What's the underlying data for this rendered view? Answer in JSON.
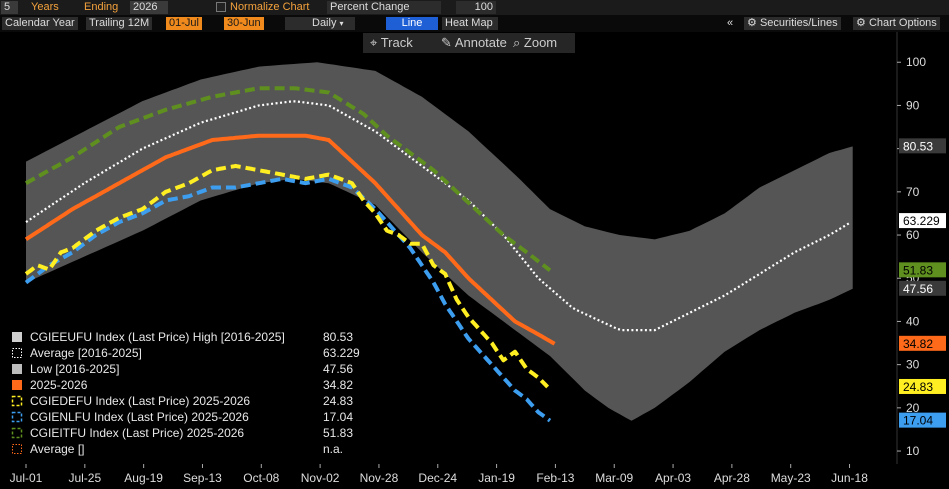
{
  "toolbar": {
    "years_value": "5",
    "years_label": "Years",
    "ending_label": "Ending",
    "ending_value": "2026",
    "normalize_label": "Normalize Chart",
    "normalize_mode": "Percent Change",
    "normalize_base": "100",
    "calendar_year": "Calendar Year",
    "trailing": "Trailing 12M",
    "start_date": "01-Jul",
    "end_date": "30-Jun",
    "frequency": "Daily",
    "line_label": "Line",
    "heatmap_label": "Heat Map",
    "collapse_glyph": "«",
    "securities_lines": "Securities/Lines",
    "chart_options": "Chart Options"
  },
  "modes": {
    "track": "Track",
    "annotate": "Annotate",
    "zoom": "Zoom"
  },
  "colors": {
    "background": "#000000",
    "band": "#5e5e5e",
    "average": "#ffffff",
    "current": "#ff6a1a",
    "cgiedefu": "#ffee22",
    "cgienlfu": "#3d9ef0",
    "cgieitfu": "#5f8f1f"
  },
  "chart_data": {
    "type": "line",
    "x_ticks": [
      "Jul-01",
      "Jul-25",
      "Aug-19",
      "Sep-13",
      "Oct-08",
      "Nov-02",
      "Nov-28",
      "Dec-24",
      "Jan-19",
      "Feb-13",
      "Mar-09",
      "Apr-03",
      "Apr-28",
      "May-23",
      "Jun-18"
    ],
    "ylim": [
      7,
      107
    ],
    "y_ticks": [
      10,
      20,
      30,
      40,
      50,
      60,
      70,
      80,
      90,
      100
    ],
    "grid": false,
    "legend_position": "bottom-left",
    "legend": [
      {
        "label": "CGIEEUFU Index (Last Price) High [2016-2025]",
        "value": "80.53",
        "style": "band-high"
      },
      {
        "label": "Average  [2016-2025]",
        "value": "63.229",
        "style": "average"
      },
      {
        "label": "Low  [2016-2025]",
        "value": "47.56",
        "style": "band-low"
      },
      {
        "label": "2025-2026",
        "value": "34.82",
        "style": "current"
      },
      {
        "label": "CGIEDEFU Index (Last Price) 2025-2026",
        "value": "24.83",
        "style": "cgiedefu"
      },
      {
        "label": "CGIENLFU Index (Last Price) 2025-2026",
        "value": "17.04",
        "style": "cgienlfu"
      },
      {
        "label": "CGIEITFU Index (Last Price) 2025-2026",
        "value": "51.83",
        "style": "cgieitfu"
      },
      {
        "label": "Average []",
        "value": "n.a.",
        "style": "average-empty"
      }
    ],
    "last_value_tags": [
      {
        "value": "80.53",
        "y": 80.53,
        "style": "band"
      },
      {
        "value": "63.229",
        "y": 63.229,
        "style": "average"
      },
      {
        "value": "51.83",
        "y": 51.83,
        "style": "cgieitfu"
      },
      {
        "value": "47.56",
        "y": 47.56,
        "style": "band"
      },
      {
        "value": "34.82",
        "y": 34.82,
        "style": "current"
      },
      {
        "value": "24.83",
        "y": 24.83,
        "style": "cgiedefu"
      },
      {
        "value": "17.04",
        "y": 17.04,
        "style": "cgienlfu"
      }
    ],
    "x_domain": [
      0,
      365
    ],
    "high": {
      "x": [
        0,
        25,
        50,
        75,
        100,
        125,
        150,
        170,
        190,
        210,
        225,
        240,
        255,
        270,
        285,
        300,
        315,
        330,
        345,
        355
      ],
      "y": [
        77,
        84,
        91,
        96,
        99,
        100,
        98,
        92,
        84,
        74,
        66,
        62,
        60,
        59,
        61,
        65,
        71,
        75,
        79,
        80.53
      ]
    },
    "low": {
      "x": [
        0,
        25,
        50,
        75,
        100,
        115,
        130,
        150,
        170,
        190,
        210,
        225,
        240,
        250,
        260,
        270,
        285,
        300,
        315,
        330,
        345,
        355
      ],
      "y": [
        49,
        55,
        61,
        68,
        72,
        73,
        72,
        67,
        56,
        46,
        38,
        32,
        24,
        20,
        17,
        20,
        26,
        33,
        38,
        42,
        45,
        47.56
      ]
    },
    "average": {
      "x": [
        0,
        25,
        50,
        75,
        100,
        115,
        130,
        150,
        170,
        190,
        205,
        220,
        235,
        255,
        270,
        285,
        300,
        315,
        330,
        345,
        355
      ],
      "y": [
        63,
        72,
        80,
        86,
        90,
        91,
        90,
        84,
        76,
        68,
        60,
        50,
        43,
        38,
        38,
        42,
        46,
        51,
        56,
        60,
        63.229
      ]
    },
    "series": [
      {
        "name": "2025-2026",
        "style": "current",
        "x": [
          0,
          20,
          40,
          60,
          80,
          100,
          110,
          120,
          130,
          140,
          150,
          160,
          170,
          180,
          190,
          200,
          210,
          220,
          227
        ],
        "y": [
          59,
          66,
          72,
          78,
          82,
          83,
          83,
          83,
          82,
          77,
          72,
          66,
          60,
          56,
          50,
          45,
          40,
          37,
          34.82
        ]
      },
      {
        "name": "CGIEDEFU Index (Last Price) 2025-2026",
        "style": "cgiedefu",
        "x": [
          0,
          5,
          10,
          15,
          20,
          30,
          40,
          50,
          60,
          70,
          80,
          90,
          100,
          110,
          120,
          130,
          140,
          145,
          150,
          155,
          160,
          165,
          170,
          175,
          180,
          185,
          190,
          195,
          200,
          205,
          210,
          215,
          220,
          224
        ],
        "y": [
          51,
          53,
          52,
          56,
          57,
          61,
          64,
          66,
          70,
          72,
          75,
          76,
          75,
          74,
          73,
          74,
          72,
          68,
          65,
          61,
          60,
          58,
          58,
          53,
          51,
          45,
          41,
          38,
          35,
          31,
          33,
          29,
          27,
          24.83
        ]
      },
      {
        "name": "CGIENLFU Index (Last Price) 2025-2026",
        "style": "cgienlfu",
        "x": [
          0,
          10,
          20,
          30,
          40,
          50,
          60,
          70,
          80,
          90,
          100,
          110,
          120,
          130,
          140,
          150,
          155,
          160,
          165,
          170,
          175,
          180,
          185,
          190,
          195,
          200,
          205,
          210,
          215,
          220,
          225
        ],
        "y": [
          49,
          53,
          56,
          60,
          63,
          65,
          68,
          69,
          71,
          71,
          72,
          73,
          72,
          73,
          71,
          66,
          63,
          60,
          57,
          53,
          49,
          44,
          40,
          36,
          33,
          30,
          27,
          24,
          22,
          19,
          17.04
        ]
      },
      {
        "name": "CGIEITFU Index (Last Price) 2025-2026",
        "style": "cgieitfu",
        "x": [
          0,
          20,
          40,
          60,
          80,
          100,
          115,
          130,
          145,
          155,
          165,
          175,
          185,
          195,
          205,
          215,
          225
        ],
        "y": [
          72,
          78,
          85,
          89,
          92,
          94,
          94,
          93,
          88,
          83,
          79,
          75,
          70,
          65,
          60,
          56,
          51.83
        ]
      }
    ]
  }
}
